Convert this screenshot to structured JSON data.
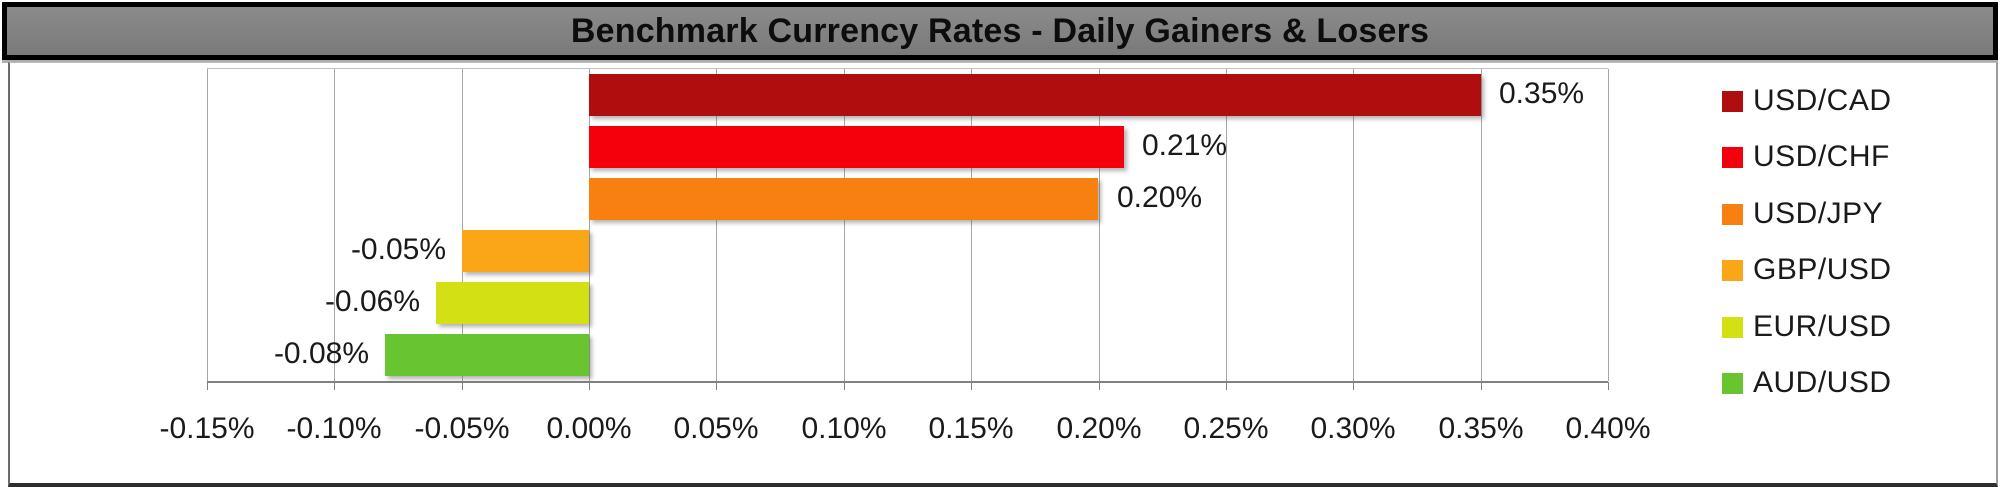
{
  "title": "Benchmark Currency Rates - Daily Gainers & Losers",
  "colors": {
    "title_bar_bg": "#7f7f7f",
    "title_bar_border": "#000000",
    "gridline": "#a6a6a6",
    "axis_line": "#808080",
    "text": "#1a1a1a"
  },
  "chart_data": {
    "type": "bar",
    "orientation": "horizontal",
    "title": "Benchmark Currency Rates - Daily Gainers & Losers",
    "categories": [
      "USD/CAD",
      "USD/CHF",
      "USD/JPY",
      "GBP/USD",
      "EUR/USD",
      "AUD/USD"
    ],
    "values": [
      0.35,
      0.21,
      0.2,
      -0.05,
      -0.06,
      -0.08
    ],
    "value_labels": [
      "0.35%",
      "0.21%",
      "0.20%",
      "-0.05%",
      "-0.06%",
      "-0.08%"
    ],
    "bar_colors": [
      "#B00D0F",
      "#F3000C",
      "#F88010",
      "#FAA616",
      "#D3E013",
      "#69C52F"
    ],
    "x_tick_labels": [
      "-0.15%",
      "-0.10%",
      "-0.05%",
      "0.00%",
      "0.05%",
      "0.10%",
      "0.15%",
      "0.20%",
      "0.25%",
      "0.30%",
      "0.35%",
      "0.40%"
    ],
    "x_tick_values": [
      -0.15,
      -0.1,
      -0.05,
      0.0,
      0.05,
      0.1,
      0.15,
      0.2,
      0.25,
      0.3,
      0.35,
      0.4
    ],
    "xlim": [
      -0.15,
      0.4
    ],
    "unit": "%",
    "grid": true,
    "legend_position": "right",
    "legend_entries": [
      {
        "label": "USD/CAD",
        "color": "#B00D0F"
      },
      {
        "label": "USD/CHF",
        "color": "#F3000C"
      },
      {
        "label": "USD/JPY",
        "color": "#F88010"
      },
      {
        "label": "GBP/USD",
        "color": "#FAA616"
      },
      {
        "label": "EUR/USD",
        "color": "#D3E013"
      },
      {
        "label": "AUD/USD",
        "color": "#69C52F"
      }
    ]
  }
}
